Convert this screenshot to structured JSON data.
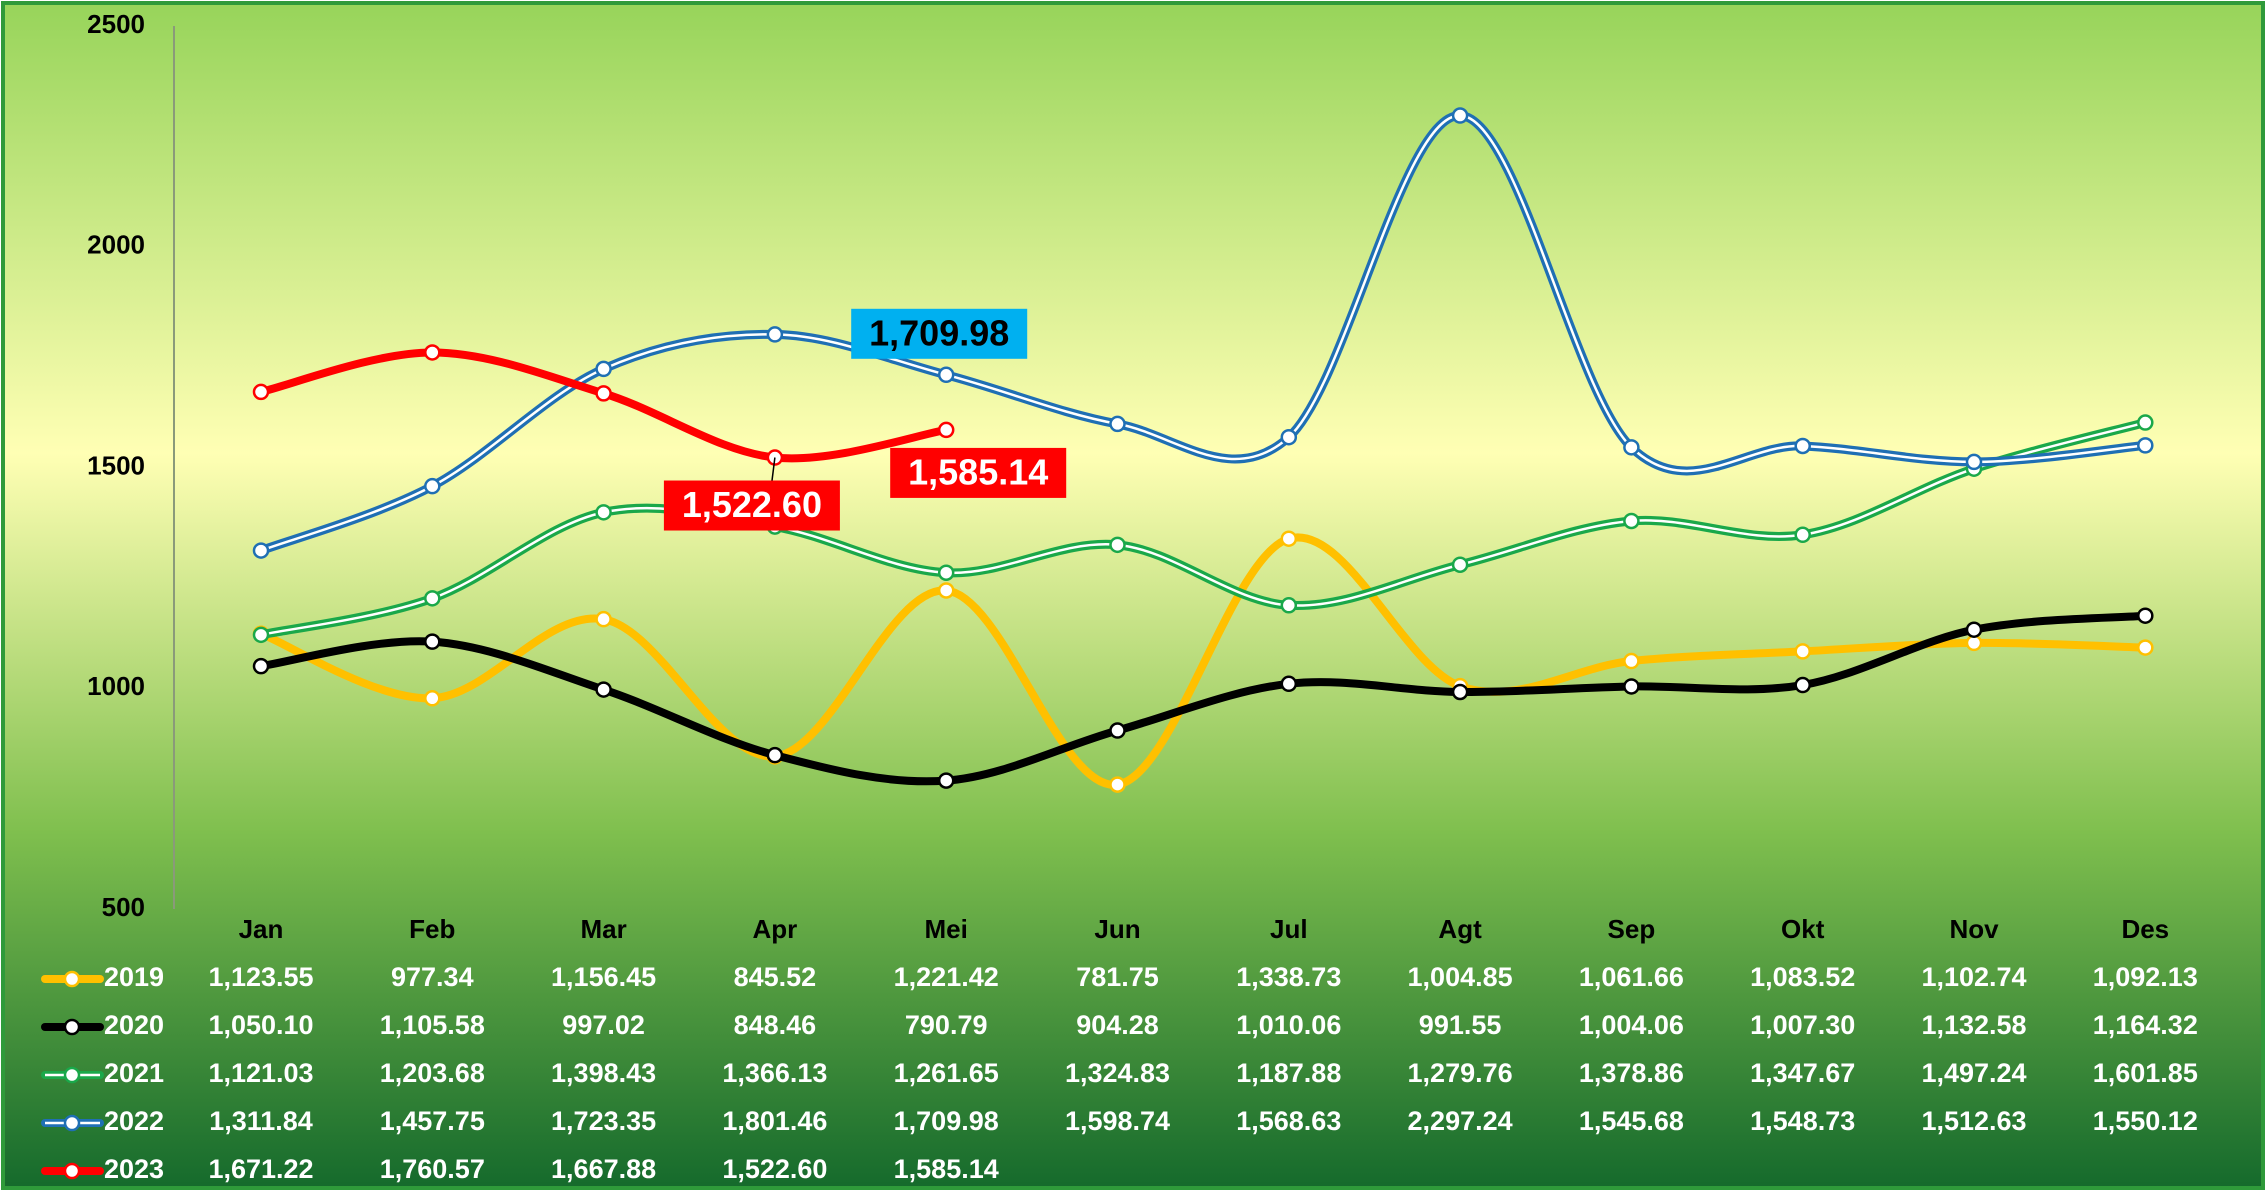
{
  "chart_data": {
    "type": "line",
    "categories": [
      "Jan",
      "Feb",
      "Mar",
      "Apr",
      "Mei",
      "Jun",
      "Jul",
      "Agt",
      "Sep",
      "Okt",
      "Nov",
      "Des"
    ],
    "ylim": [
      500,
      2500
    ],
    "yticks": [
      500,
      1000,
      1500,
      2000,
      2500
    ],
    "grid": false,
    "series": [
      {
        "name": "2019",
        "color": "#ffc000",
        "double": false,
        "values": [
          1123.55,
          977.34,
          1156.45,
          845.52,
          1221.42,
          781.75,
          1338.73,
          1004.85,
          1061.66,
          1083.52,
          1102.74,
          1092.13
        ],
        "value_labels": [
          "1,123.55",
          "977.34",
          "1,156.45",
          "845.52",
          "1,221.42",
          "781.75",
          "1,338.73",
          "1,004.85",
          "1,061.66",
          "1,083.52",
          "1,102.74",
          "1,092.13"
        ]
      },
      {
        "name": "2020",
        "color": "#000000",
        "double": false,
        "values": [
          1050.1,
          1105.58,
          997.02,
          848.46,
          790.79,
          904.28,
          1010.06,
          991.55,
          1004.06,
          1007.3,
          1132.58,
          1164.32
        ],
        "value_labels": [
          "1,050.10",
          "1,105.58",
          "997.02",
          "848.46",
          "790.79",
          "904.28",
          "1,010.06",
          "991.55",
          "1,004.06",
          "1,007.30",
          "1,132.58",
          "1,164.32"
        ]
      },
      {
        "name": "2021",
        "color": "#1aa84a",
        "double": true,
        "values": [
          1121.03,
          1203.68,
          1398.43,
          1366.13,
          1261.65,
          1324.83,
          1187.88,
          1279.76,
          1378.86,
          1347.67,
          1497.24,
          1601.85
        ],
        "value_labels": [
          "1,121.03",
          "1,203.68",
          "1,398.43",
          "1,366.13",
          "1,261.65",
          "1,324.83",
          "1,187.88",
          "1,279.76",
          "1,378.86",
          "1,347.67",
          "1,497.24",
          "1,601.85"
        ]
      },
      {
        "name": "2022",
        "color": "#1f6fb4",
        "double": true,
        "values": [
          1311.84,
          1457.75,
          1723.35,
          1801.46,
          1709.98,
          1598.74,
          1568.63,
          2297.24,
          1545.68,
          1548.73,
          1512.63,
          1550.12
        ],
        "value_labels": [
          "1,311.84",
          "1,457.75",
          "1,723.35",
          "1,801.46",
          "1,709.98",
          "1,598.74",
          "1,568.63",
          "2,297.24",
          "1,545.68",
          "1,548.73",
          "1,512.63",
          "1,550.12"
        ],
        "labeled_points": [
          4
        ],
        "label_color": "#00b0f0",
        "label_text_color": "#000000"
      },
      {
        "name": "2023",
        "color": "#ff0000",
        "double": false,
        "values": [
          1671.22,
          1760.57,
          1667.88,
          1522.6,
          1585.14,
          null,
          null,
          null,
          null,
          null,
          null,
          null
        ],
        "value_labels": [
          "1,671.22",
          "1,760.57",
          "1,667.88",
          "1,522.60",
          "1,585.14",
          null,
          null,
          null,
          null,
          null,
          null,
          null
        ],
        "labeled_points": [
          3,
          4
        ],
        "label_color": "#ff0000",
        "label_text_color": "#ffffff"
      }
    ]
  }
}
